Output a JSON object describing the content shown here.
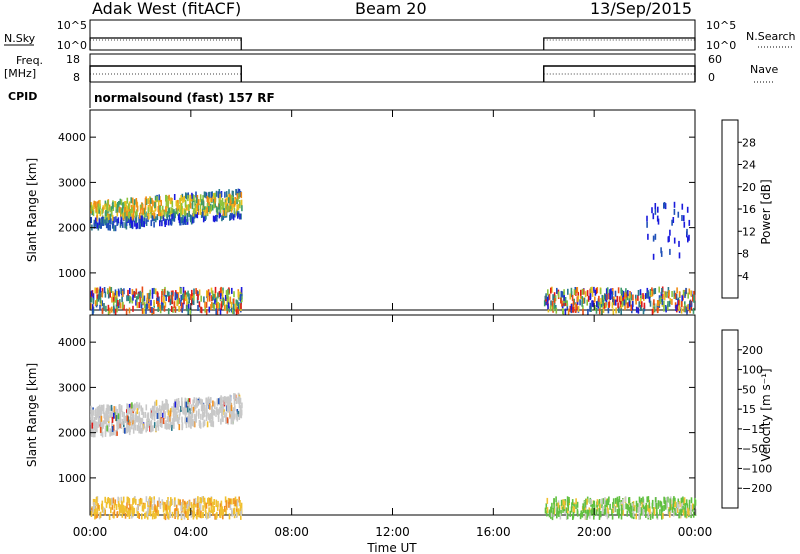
{
  "header": {
    "station": "Adak West (fitACF)",
    "beam": "Beam 20",
    "date": "13/Sep/2015"
  },
  "summary_panels": {
    "nsky": {
      "left_label": "N.Sky",
      "left_ticks": [
        "10^5",
        "10^0"
      ],
      "right_ticks": [
        "10^5",
        "10^0"
      ],
      "right_label": "N.Search"
    },
    "freq": {
      "left_label_1": "Freq.",
      "left_label_2": "[MHz]",
      "left_ticks": [
        "18",
        "8"
      ],
      "right_ticks": [
        "60",
        "0"
      ],
      "right_label": "Nave"
    },
    "cpid": {
      "label": "CPID",
      "text": "normalsound (fast) 157 RF"
    }
  },
  "colors": {
    "power": [
      "#1a1adc",
      "#2050b8",
      "#2a7a8a",
      "#3c9a6a",
      "#8cc43c",
      "#e8c020",
      "#f08c14",
      "#e84a14",
      "#e01818"
    ],
    "velocity": [
      "#1a1adc",
      "#2050b8",
      "#2a7a8a",
      "#60c040",
      "#c8c8c8",
      "#f0c030",
      "#f09020",
      "#e85018",
      "#e01818"
    ]
  },
  "chart_data": [
    {
      "type": "heatmap",
      "name": "power",
      "ylabel": "Slant Range [km]",
      "ylim": [
        180,
        4600
      ],
      "xlim": [
        0,
        24
      ],
      "yticks": [
        1000,
        2000,
        3000,
        4000
      ],
      "ytick_labels": [
        "1000",
        "2000",
        "3000",
        "4000"
      ],
      "colorbar": {
        "label": "Power [dB]",
        "range": [
          0,
          32
        ],
        "ticks": [
          4,
          8,
          12,
          16,
          20,
          24,
          28
        ],
        "tick_labels": [
          "4",
          "8",
          "12",
          "16",
          "20",
          "24",
          "28"
        ]
      },
      "data_intervals_ut_hours": [
        [
          0,
          6
        ],
        [
          18,
          24
        ]
      ],
      "scatter_regions": [
        {
          "x_range_ut": [
            0,
            6
          ],
          "range_km": [
            2100,
            3100
          ],
          "level": "medium-high"
        },
        {
          "x_range_ut": [
            0,
            6
          ],
          "range_km": [
            200,
            700
          ],
          "level": "mixed"
        },
        {
          "x_range_ut": [
            18,
            24
          ],
          "range_km": [
            200,
            700
          ],
          "level": "mixed"
        },
        {
          "x_range_ut": [
            22,
            23.8
          ],
          "range_km": [
            1400,
            2600
          ],
          "level": "low"
        }
      ]
    },
    {
      "type": "heatmap",
      "name": "velocity",
      "ylabel": "Slant Range [km]",
      "ylim": [
        180,
        4600
      ],
      "xlim": [
        0,
        24
      ],
      "yticks": [
        1000,
        2000,
        3000,
        4000
      ],
      "ytick_labels": [
        "1000",
        "2000",
        "3000",
        "4000"
      ],
      "colorbar": {
        "label": "Velocity [m s⁻¹]",
        "ticks": [
          200,
          100,
          50,
          15,
          -15,
          -50,
          -100,
          -200
        ],
        "tick_labels": [
          "200",
          "100",
          "50",
          "15",
          "−15",
          "−50",
          "−100",
          "−200"
        ]
      },
      "data_intervals_ut_hours": [
        [
          0,
          6
        ],
        [
          18,
          24
        ]
      ],
      "scatter_regions": [
        {
          "x_range_ut": [
            0,
            6
          ],
          "range_km": [
            2100,
            3100
          ],
          "level": "near-zero"
        },
        {
          "x_range_ut": [
            0,
            6
          ],
          "range_km": [
            200,
            600
          ],
          "level": "negative-small"
        },
        {
          "x_range_ut": [
            18,
            24
          ],
          "range_km": [
            200,
            600
          ],
          "level": "positive-small"
        }
      ]
    }
  ],
  "xaxis": {
    "label": "Time UT",
    "ticks": [
      0,
      4,
      8,
      12,
      16,
      20,
      24
    ],
    "tick_labels": [
      "00:00",
      "04:00",
      "08:00",
      "12:00",
      "16:00",
      "20:00",
      "00:00"
    ]
  }
}
